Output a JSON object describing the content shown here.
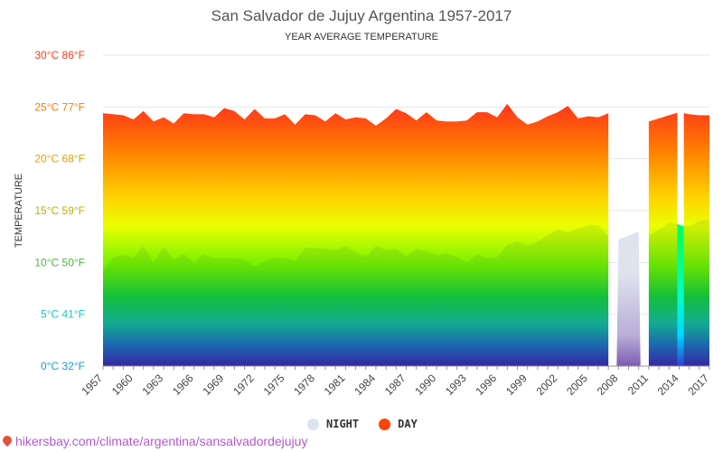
{
  "title": "San Salvador de Jujuy Argentina 1957-2017",
  "subtitle": "YEAR AVERAGE TEMPERATURE",
  "source": "hikersbay.com/climate/argentina/sansalvadordejujuy",
  "legend": {
    "night": "NIGHT",
    "day": "DAY"
  },
  "colors": {
    "night_legend": "#dde3f0",
    "day_legend": "#ff4500",
    "source": "#b25ad1"
  },
  "chart_data": {
    "type": "area",
    "title": "San Salvador de Jujuy Argentina 1957-2017",
    "subtitle": "YEAR AVERAGE TEMPERATURE",
    "ylabel": "TEMPERATURE",
    "ylim": [
      0,
      30
    ],
    "y_ticks": [
      "0°C 32°F",
      "5°C 41°F",
      "10°C 50°F",
      "15°C 59°F",
      "20°C 68°F",
      "25°C 77°F",
      "30°C 86°F"
    ],
    "y_tick_colors": [
      "#1f9ad0",
      "#19c6c6",
      "#49b93a",
      "#b7b300",
      "#e3a000",
      "#ff7a00",
      "#ff3b1a"
    ],
    "x_ticks": [
      1957,
      1960,
      1963,
      1966,
      1969,
      1972,
      1975,
      1978,
      1981,
      1984,
      1987,
      1990,
      1993,
      1996,
      1999,
      2002,
      2005,
      2008,
      2011,
      2014,
      2017
    ],
    "grid": true,
    "legend_position": "bottom",
    "x": [
      1957,
      1958,
      1959,
      1960,
      1961,
      1962,
      1963,
      1964,
      1965,
      1966,
      1967,
      1968,
      1969,
      1970,
      1971,
      1972,
      1973,
      1974,
      1975,
      1976,
      1977,
      1978,
      1979,
      1980,
      1981,
      1982,
      1983,
      1984,
      1985,
      1986,
      1987,
      1988,
      1989,
      1990,
      1991,
      1992,
      1993,
      1994,
      1995,
      1996,
      1997,
      1998,
      1999,
      2000,
      2001,
      2002,
      2003,
      2004,
      2005,
      2006,
      2007,
      2008,
      2009,
      2010,
      2011,
      2012,
      2013,
      2014,
      2015,
      2016,
      2017
    ],
    "series": [
      {
        "name": "DAY",
        "values": [
          24.4,
          24.3,
          24.2,
          23.8,
          24.6,
          23.6,
          24.0,
          23.4,
          24.4,
          24.3,
          24.3,
          24.0,
          24.9,
          24.6,
          23.8,
          24.8,
          23.9,
          23.9,
          24.3,
          23.3,
          24.3,
          24.2,
          23.6,
          24.4,
          23.8,
          24.0,
          23.9,
          23.2,
          23.9,
          24.8,
          24.4,
          23.7,
          24.5,
          23.7,
          23.6,
          23.6,
          23.7,
          24.5,
          24.5,
          24.0,
          25.3,
          24.0,
          23.3,
          23.6,
          24.1,
          24.5,
          25.1,
          23.9,
          24.1,
          24.0,
          24.4,
          null,
          null,
          null,
          23.6,
          23.9,
          24.2,
          24.5,
          24.3,
          24.2,
          24.2
        ]
      },
      {
        "name": "NIGHT",
        "values": [
          9.2,
          10.5,
          10.7,
          10.5,
          11.6,
          10.0,
          11.5,
          10.3,
          10.8,
          10.0,
          10.8,
          10.4,
          10.4,
          10.4,
          10.3,
          9.6,
          10.1,
          10.5,
          10.4,
          10.1,
          11.4,
          11.4,
          11.3,
          11.2,
          11.6,
          11.0,
          10.5,
          11.6,
          11.2,
          11.3,
          10.6,
          11.3,
          11.1,
          10.7,
          10.9,
          10.5,
          10.0,
          10.8,
          10.4,
          10.5,
          11.7,
          12.0,
          11.6,
          12.0,
          12.6,
          13.2,
          12.9,
          13.3,
          13.6,
          13.6,
          12.5,
          12.2,
          12.6,
          13.0,
          12.6,
          13.2,
          13.8,
          13.7,
          13.5,
          14.0,
          14.1
        ]
      }
    ],
    "pale_segment": {
      "from": 2008,
      "to": 2010
    },
    "cyan_segment": {
      "from": 2014,
      "to": 2015
    }
  }
}
